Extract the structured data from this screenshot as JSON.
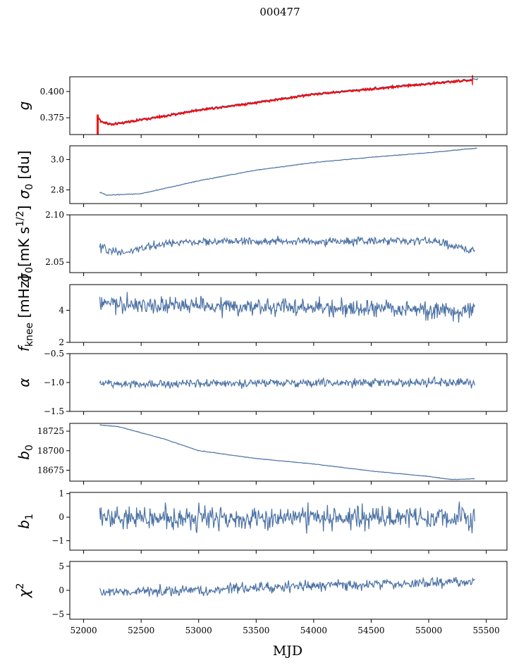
{
  "figure": {
    "title": "000477",
    "xlabel": "MJD"
  },
  "colors": {
    "series": "#4c72a5",
    "highlight": "#ff0000",
    "frame": "#000000"
  },
  "chart_data": [
    {
      "type": "line",
      "name": "g",
      "ylabel": "g",
      "xlim": [
        51880,
        55680
      ],
      "ylim": [
        0.359,
        0.414
      ],
      "yticks": [
        0.375,
        0.4
      ],
      "ytick_labels": [
        "0.375",
        "0.400"
      ],
      "x_range": [
        52120,
        55430
      ],
      "trend": [
        [
          52120,
          0.377
        ],
        [
          52150,
          0.372
        ],
        [
          52250,
          0.369
        ],
        [
          52400,
          0.372
        ],
        [
          52700,
          0.377
        ],
        [
          53000,
          0.383
        ],
        [
          53500,
          0.39
        ],
        [
          54000,
          0.398
        ],
        [
          54500,
          0.403
        ],
        [
          55000,
          0.408
        ],
        [
          55430,
          0.412
        ]
      ],
      "noise": 0.0008,
      "overlay": {
        "color_key": "highlight",
        "offset": -0.0008,
        "spike_x": [
          52120,
          52125
        ],
        "spike_range": [
          0.359,
          0.378
        ],
        "spike_end_x": 55380
      }
    },
    {
      "type": "line",
      "name": "sigma0_du",
      "ylabel": "σ0 [du]",
      "xlim": [
        51880,
        55680
      ],
      "ylim": [
        2.71,
        3.09
      ],
      "yticks": [
        2.8,
        3.0
      ],
      "ytick_labels": [
        "2.8",
        "3.0"
      ],
      "x_range": [
        52140,
        55420
      ],
      "trend": [
        [
          52140,
          2.785
        ],
        [
          52200,
          2.765
        ],
        [
          52500,
          2.775
        ],
        [
          53000,
          2.86
        ],
        [
          53500,
          2.93
        ],
        [
          54000,
          2.98
        ],
        [
          54500,
          3.015
        ],
        [
          55000,
          3.045
        ],
        [
          55420,
          3.075
        ]
      ],
      "noise": 0.002
    },
    {
      "type": "line",
      "name": "sigma0_mK",
      "ylabel": "σ0[mK s^1/2]",
      "xlim": [
        51880,
        55680
      ],
      "ylim": [
        2.039,
        2.1
      ],
      "yticks": [
        2.05,
        2.1
      ],
      "ytick_labels": [
        "2.05",
        "2.10"
      ],
      "x_range": [
        52140,
        55400
      ],
      "trend": [
        [
          52140,
          2.065
        ],
        [
          52350,
          2.06
        ],
        [
          52700,
          2.07
        ],
        [
          53200,
          2.072
        ],
        [
          54000,
          2.072
        ],
        [
          54500,
          2.072
        ],
        [
          55000,
          2.073
        ],
        [
          55400,
          2.062
        ]
      ],
      "noise": 0.0035
    },
    {
      "type": "line",
      "name": "fknee",
      "ylabel": "fknee [mHz]",
      "xlim": [
        51880,
        55680
      ],
      "ylim": [
        2,
        5.6
      ],
      "yticks": [
        2,
        4
      ],
      "ytick_labels": [
        "2",
        "4"
      ],
      "x_range": [
        52140,
        55400
      ],
      "trend": [
        [
          52140,
          4.4
        ],
        [
          52600,
          4.3
        ],
        [
          53500,
          4.2
        ],
        [
          54500,
          4.1
        ],
        [
          55400,
          3.9
        ]
      ],
      "noise": 0.45
    },
    {
      "type": "line",
      "name": "alpha",
      "ylabel": "α",
      "xlim": [
        51880,
        55680
      ],
      "ylim": [
        -1.5,
        -0.5
      ],
      "yticks": [
        -1.5,
        -1.0,
        -0.5
      ],
      "ytick_labels": [
        "−1.5",
        "−1.0",
        "−0.5"
      ],
      "x_range": [
        52140,
        55400
      ],
      "trend": [
        [
          52140,
          -1.02
        ],
        [
          55400,
          -1.0
        ]
      ],
      "noise": 0.06
    },
    {
      "type": "line",
      "name": "b0",
      "ylabel": "b0",
      "xlim": [
        51880,
        55680
      ],
      "ylim": [
        18661,
        18735
      ],
      "yticks": [
        18675,
        18700,
        18725
      ],
      "ytick_labels": [
        "18675",
        "18700",
        "18725"
      ],
      "x_range": [
        52140,
        55400
      ],
      "trend": [
        [
          52140,
          18733
        ],
        [
          52300,
          18731
        ],
        [
          52700,
          18715
        ],
        [
          53000,
          18700
        ],
        [
          53500,
          18690
        ],
        [
          54000,
          18683
        ],
        [
          54500,
          18674
        ],
        [
          55000,
          18667
        ],
        [
          55200,
          18663
        ],
        [
          55400,
          18664
        ]
      ],
      "noise": 0.3
    },
    {
      "type": "line",
      "name": "b1",
      "ylabel": "b1",
      "xlim": [
        51880,
        55680
      ],
      "ylim": [
        -1.4,
        1.05
      ],
      "yticks": [
        -1,
        0,
        1
      ],
      "ytick_labels": [
        "−1",
        "0",
        "1"
      ],
      "x_range": [
        52140,
        55400
      ],
      "trend": [
        [
          52140,
          -0.05
        ],
        [
          55400,
          -0.05
        ]
      ],
      "noise": 0.42
    },
    {
      "type": "line",
      "name": "chi2",
      "ylabel": "χ2",
      "xlim": [
        51880,
        55680
      ],
      "ylim": [
        -6,
        6
      ],
      "yticks": [
        -5,
        0,
        5
      ],
      "ytick_labels": [
        "−5",
        "0",
        "5"
      ],
      "xticks": [
        52000,
        52500,
        53000,
        53500,
        54000,
        54500,
        55000,
        55500
      ],
      "xtick_labels": [
        "52000",
        "52500",
        "53000",
        "53500",
        "54000",
        "54500",
        "55000",
        "55500"
      ],
      "x_range": [
        52140,
        55400
      ],
      "trend": [
        [
          52140,
          -0.5
        ],
        [
          52500,
          -0.2
        ],
        [
          53000,
          0.0
        ],
        [
          53500,
          0.5
        ],
        [
          54000,
          0.9
        ],
        [
          54500,
          1.2
        ],
        [
          55000,
          1.5
        ],
        [
          55400,
          2.0
        ]
      ],
      "noise": 0.9
    }
  ]
}
